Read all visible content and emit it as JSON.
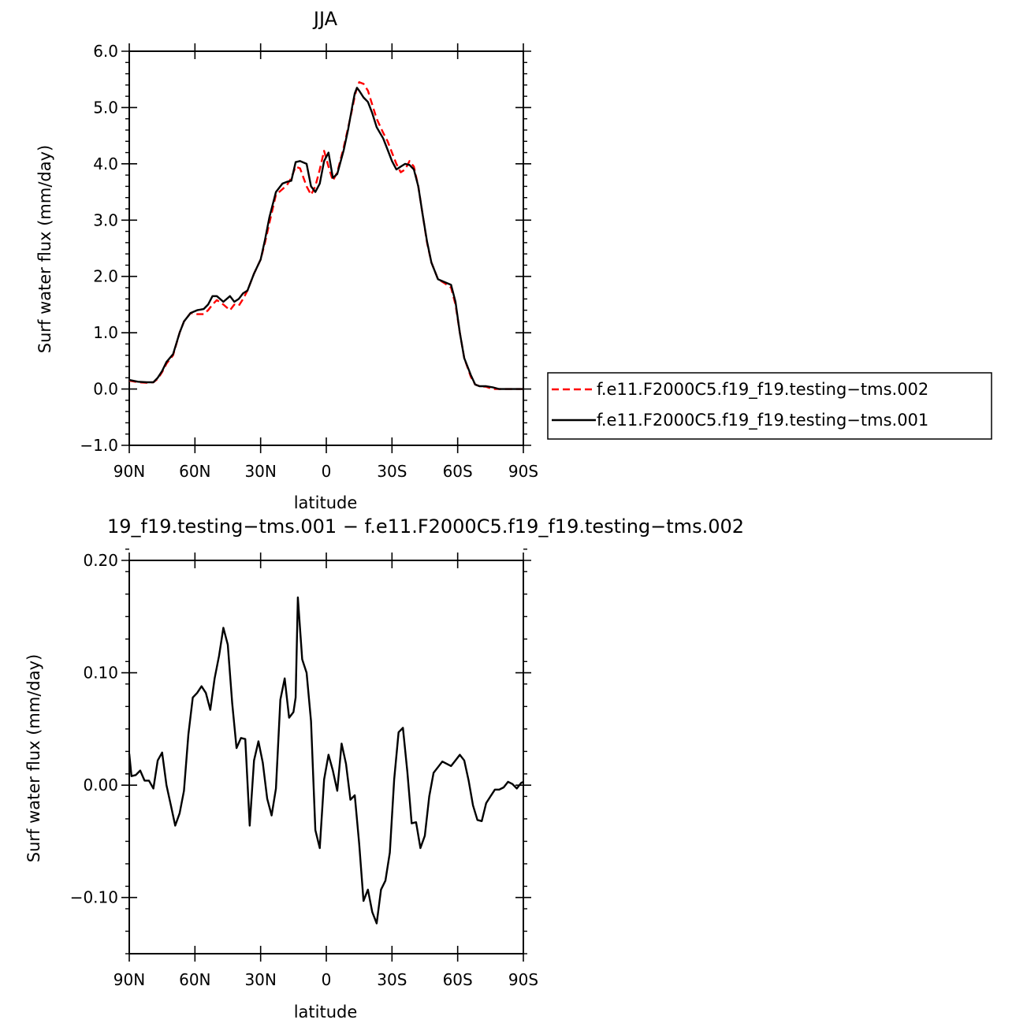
{
  "chart_data": [
    {
      "type": "line",
      "title": "JJA",
      "xlabel": "latitude",
      "ylabel": "Surf water flux (mm/day)",
      "xlim": [
        90,
        -90
      ],
      "ylim": [
        -1.0,
        6.0
      ],
      "yticks": [
        -1.0,
        0.0,
        1.0,
        2.0,
        3.0,
        4.0,
        5.0,
        6.0
      ],
      "ytick_labels": [
        "−1.0",
        "0.0",
        "1.0",
        "2.0",
        "3.0",
        "4.0",
        "5.0",
        "6.0"
      ],
      "xticks": [
        90,
        60,
        30,
        0,
        -30,
        -60,
        -90
      ],
      "xtick_labels": [
        "90N",
        "60N",
        "30N",
        "0",
        "30S",
        "60S",
        "90S"
      ],
      "legend_position": "right",
      "series": [
        {
          "name": "f.e11.F2000C5.f19_f19.testing−tms.002",
          "color": "#ff0000",
          "dash": "dashed",
          "x": [
            90,
            86,
            82,
            79,
            77,
            75,
            73,
            70,
            67,
            65,
            62,
            59,
            56,
            54,
            52,
            50,
            47,
            44,
            42,
            40,
            38,
            36,
            33,
            30,
            28,
            26,
            23,
            20,
            18,
            16,
            14,
            12,
            9,
            7,
            5,
            3,
            1,
            -1,
            -3,
            -5,
            -8,
            -10,
            -12,
            -13,
            -14,
            -15,
            -17,
            -19,
            -21,
            -23,
            -26,
            -28,
            -30,
            -32,
            -34,
            -36,
            -38,
            -40,
            -42,
            -44,
            -46,
            -48,
            -51,
            -54,
            -57,
            -59,
            -61,
            -63,
            -66,
            -68,
            -70,
            -73,
            -76,
            -79,
            -82,
            -85,
            -88,
            -90
          ],
          "y": [
            0.15,
            0.12,
            0.11,
            0.12,
            0.18,
            0.3,
            0.45,
            0.6,
            1.0,
            1.2,
            1.35,
            1.33,
            1.33,
            1.4,
            1.5,
            1.58,
            1.5,
            1.4,
            1.5,
            1.48,
            1.6,
            1.75,
            2.05,
            2.3,
            2.6,
            2.95,
            3.45,
            3.55,
            3.62,
            3.75,
            3.95,
            3.92,
            3.6,
            3.45,
            3.6,
            3.9,
            4.23,
            3.95,
            3.7,
            3.85,
            4.3,
            4.65,
            5.0,
            5.2,
            5.35,
            5.45,
            5.42,
            5.3,
            5.05,
            4.8,
            4.55,
            4.4,
            4.2,
            4.0,
            3.85,
            3.9,
            4.05,
            3.95,
            3.6,
            3.1,
            2.6,
            2.25,
            1.95,
            1.88,
            1.8,
            1.5,
            1.0,
            0.55,
            0.22,
            0.08,
            0.05,
            0.04,
            0.0,
            0.0,
            0.0,
            0.0,
            0.0,
            0.0
          ]
        },
        {
          "name": "f.e11.F2000C5.f19_f19.testing−tms.001",
          "color": "#000000",
          "dash": "solid",
          "x": [
            90,
            86,
            82,
            79,
            77,
            75,
            73,
            70,
            67,
            65,
            62,
            59,
            56,
            54,
            52,
            50,
            47,
            44,
            42,
            40,
            38,
            36,
            33,
            30,
            28,
            26,
            23,
            20,
            18,
            16,
            14,
            12,
            9,
            7,
            5,
            3,
            1,
            -1,
            -3,
            -5,
            -8,
            -10,
            -12,
            -13,
            -14,
            -15,
            -17,
            -19,
            -21,
            -23,
            -26,
            -28,
            -30,
            -32,
            -34,
            -36,
            -38,
            -40,
            -42,
            -44,
            -46,
            -48,
            -51,
            -54,
            -57,
            -59,
            -61,
            -63,
            -66,
            -68,
            -70,
            -73,
            -76,
            -79,
            -82,
            -85,
            -88,
            -90
          ],
          "y": [
            0.16,
            0.13,
            0.12,
            0.12,
            0.2,
            0.32,
            0.48,
            0.62,
            1.0,
            1.2,
            1.35,
            1.4,
            1.42,
            1.5,
            1.65,
            1.65,
            1.55,
            1.65,
            1.55,
            1.6,
            1.7,
            1.75,
            2.05,
            2.3,
            2.65,
            3.05,
            3.5,
            3.65,
            3.68,
            3.7,
            4.03,
            4.05,
            4.0,
            3.6,
            3.5,
            3.65,
            4.05,
            4.2,
            3.75,
            3.82,
            4.25,
            4.62,
            5.05,
            5.25,
            5.35,
            5.3,
            5.18,
            5.1,
            4.9,
            4.65,
            4.45,
            4.25,
            4.05,
            3.9,
            3.95,
            4.0,
            3.98,
            3.9,
            3.6,
            3.1,
            2.62,
            2.25,
            1.95,
            1.9,
            1.85,
            1.55,
            1.0,
            0.55,
            0.25,
            0.08,
            0.05,
            0.05,
            0.03,
            0.0,
            0.0,
            0.0,
            0.0,
            0.0
          ]
        }
      ]
    },
    {
      "type": "line",
      "title": "19_f19.testing−tms.001 − f.e11.F2000C5.f19_f19.testing−tms.002",
      "xlabel": "latitude",
      "ylabel": "Surf water flux (mm/day)",
      "xlim": [
        90,
        -90
      ],
      "ylim": [
        -0.15,
        0.2
      ],
      "yticks": [
        -0.1,
        0.0,
        0.1,
        0.2
      ],
      "ytick_labels": [
        "−0.10",
        "0.00",
        "0.10",
        "0.20"
      ],
      "xticks": [
        90,
        60,
        30,
        0,
        -30,
        -60,
        -90
      ],
      "xtick_labels": [
        "90N",
        "60N",
        "30N",
        "0",
        "30S",
        "60S",
        "90S"
      ],
      "series": [
        {
          "color": "#000000",
          "dash": "solid",
          "x": [
            90,
            89,
            87,
            85,
            83,
            81,
            79,
            77,
            75,
            73,
            71,
            69,
            67,
            65,
            63,
            61,
            59,
            57,
            55,
            53,
            51,
            49,
            47,
            45,
            43,
            41,
            39,
            37,
            35,
            33,
            31,
            29,
            27,
            25,
            23,
            21,
            19,
            17,
            15,
            14,
            13,
            11,
            9,
            7,
            5,
            3,
            1,
            -1,
            -3,
            -5,
            -7,
            -9,
            -11,
            -13,
            -15,
            -17,
            -19,
            -21,
            -23,
            -25,
            -27,
            -29,
            -31,
            -33,
            -35,
            -37,
            -39,
            -41,
            -43,
            -45,
            -47,
            -49,
            -51,
            -53,
            -55,
            -57,
            -59,
            -61,
            -63,
            -65,
            -67,
            -69,
            -71,
            -73,
            -75,
            -77,
            -79,
            -81,
            -83,
            -85,
            -87,
            -89,
            -90
          ],
          "y": [
            0.028,
            0.008,
            0.009,
            0.013,
            0.004,
            0.004,
            -0.003,
            0.022,
            0.029,
            0.0,
            -0.018,
            -0.036,
            -0.025,
            -0.005,
            0.045,
            0.078,
            0.082,
            0.088,
            0.082,
            0.067,
            0.095,
            0.115,
            0.14,
            0.125,
            0.073,
            0.033,
            0.042,
            0.041,
            -0.036,
            0.022,
            0.039,
            0.02,
            -0.012,
            -0.027,
            -0.003,
            0.076,
            0.095,
            0.06,
            0.065,
            0.078,
            0.167,
            0.112,
            0.1,
            0.057,
            -0.04,
            -0.056,
            0.005,
            0.027,
            0.013,
            -0.005,
            0.037,
            0.019,
            -0.013,
            -0.009,
            -0.052,
            -0.103,
            -0.093,
            -0.113,
            -0.123,
            -0.093,
            -0.085,
            -0.06,
            0.005,
            0.047,
            0.051,
            0.012,
            -0.034,
            -0.033,
            -0.056,
            -0.045,
            -0.01,
            0.011,
            0.016,
            0.021,
            0.019,
            0.017,
            0.022,
            0.027,
            0.022,
            0.004,
            -0.018,
            -0.031,
            -0.032,
            -0.016,
            -0.01,
            -0.004,
            -0.004,
            -0.002,
            0.003,
            0.001,
            -0.003,
            0.002,
            0.003
          ]
        }
      ]
    }
  ]
}
